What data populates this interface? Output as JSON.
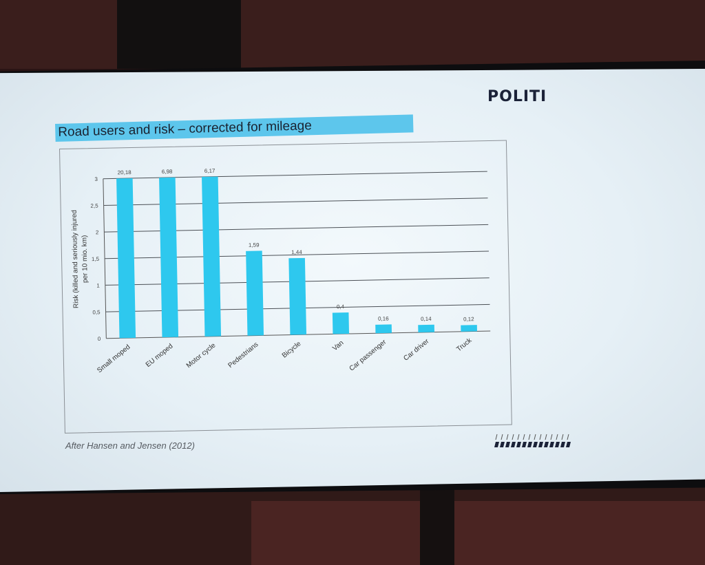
{
  "logo_text": "POLITI",
  "slide_title": "Road users and risk – corrected for mileage",
  "source_note": "After Hansen and Jensen (2012)",
  "colors": {
    "bar": "#2ec8ee",
    "title_bg": "#5dc6ec",
    "grid": "#4a4f55"
  },
  "chart_data": {
    "type": "bar",
    "title": "",
    "ylabel": "Risk (killed and seriously injured per 10 mio. km)",
    "xlabel": "",
    "ylim": [
      0,
      3
    ],
    "yticks": [
      "0",
      "0,5",
      "1",
      "1,5",
      "2",
      "2,5",
      "3"
    ],
    "categories": [
      "Small moped",
      "EU moped",
      "Motor cycle",
      "Pedestrians",
      "Bicycle",
      "Van",
      "Car passenger",
      "Car driver",
      "Truck"
    ],
    "values": [
      20.18,
      6.98,
      6.17,
      1.59,
      1.44,
      0.4,
      0.16,
      0.14,
      0.12
    ],
    "data_labels": [
      "20,18",
      "6,98",
      "6,17",
      "1,59",
      "1,44",
      "0,4",
      "0,16",
      "0,14",
      "0,12"
    ],
    "grid": true,
    "legend": "none"
  }
}
